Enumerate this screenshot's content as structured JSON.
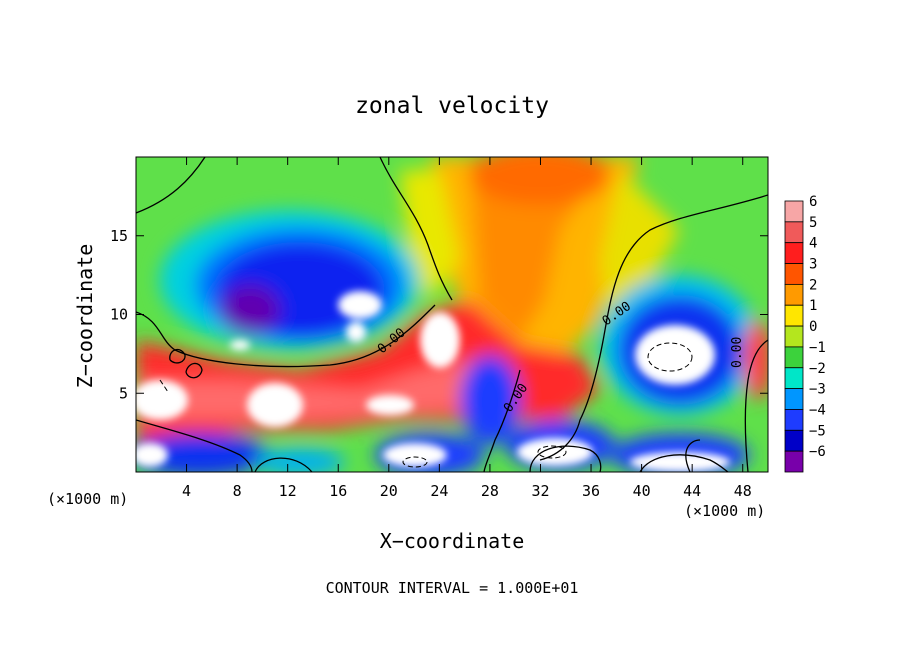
{
  "chart_data": {
    "type": "heatmap",
    "title": "zonal velocity",
    "xlabel": "X−coordinate",
    "ylabel": "Z−coordinate",
    "xunit_left": "(×1000 m)",
    "xunit_right": "(×1000 m)",
    "footer": "CONTOUR INTERVAL = 1.000E+01",
    "xlim": [
      0,
      50
    ],
    "ylim": [
      0,
      20
    ],
    "xticks": [
      4,
      8,
      12,
      16,
      20,
      24,
      28,
      32,
      36,
      40,
      44,
      48
    ],
    "xtick_labels": [
      "4",
      "8",
      "12",
      "16",
      "20",
      "24",
      "28",
      "32",
      "36",
      "40",
      "44",
      "48"
    ],
    "yticks": [
      5,
      10,
      15
    ],
    "ytick_labels": [
      "5",
      "10",
      "15"
    ],
    "colorbar": {
      "levels": [
        6,
        5,
        4,
        3,
        2,
        1,
        0,
        -1,
        -2,
        -3,
        -4,
        -5,
        -6
      ],
      "labels": [
        "6",
        "5",
        "4",
        "3",
        "2",
        "1",
        "0",
        "−1",
        "−2",
        "−3",
        "−4",
        "−5",
        "−6"
      ],
      "colors": [
        "#f7a6a6",
        "#f05a5a",
        "#ff1e1e",
        "#ff5500",
        "#ff9a00",
        "#ffe600",
        "#b4e61e",
        "#3cd23c",
        "#00e6c8",
        "#0096ff",
        "#1e3cff",
        "#0000c8",
        "#7800aa"
      ]
    },
    "contour_labels": [
      "0.00",
      "0.00",
      "0.00",
      "0.00"
    ],
    "grid": false,
    "legend": "colorbar right"
  }
}
